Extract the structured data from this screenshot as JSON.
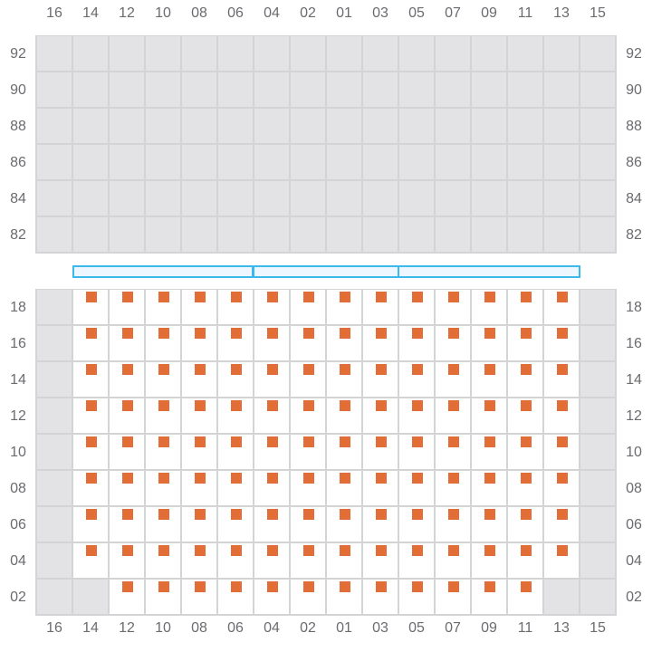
{
  "columns": [
    "16",
    "14",
    "12",
    "10",
    "08",
    "06",
    "04",
    "02",
    "01",
    "03",
    "05",
    "07",
    "09",
    "11",
    "13",
    "15"
  ],
  "colors": {
    "seat": "#e36d37",
    "unavailable": "#e3e3e5",
    "grid": "#d4d4d6",
    "section_bar": "#3bb8ec"
  },
  "top_section": {
    "rows": [
      "92",
      "90",
      "88",
      "86",
      "84",
      "82"
    ],
    "state": "unavailable"
  },
  "section_bar": {
    "segments": 3
  },
  "bottom_section": {
    "rows": [
      {
        "label": "18",
        "seats": "xoooooooooooooox"
      },
      {
        "label": "16",
        "seats": "xoooooooooooooox"
      },
      {
        "label": "14",
        "seats": "xoooooooooooooox"
      },
      {
        "label": "12",
        "seats": "xoooooooooooooox"
      },
      {
        "label": "10",
        "seats": "xoooooooooooooox"
      },
      {
        "label": "08",
        "seats": "xoooooooooooooox"
      },
      {
        "label": "06",
        "seats": "xoooooooooooooox"
      },
      {
        "label": "04",
        "seats": "xoooooooooooooox"
      },
      {
        "label": "02",
        "seats": "xxooooooooooooxx"
      }
    ]
  }
}
